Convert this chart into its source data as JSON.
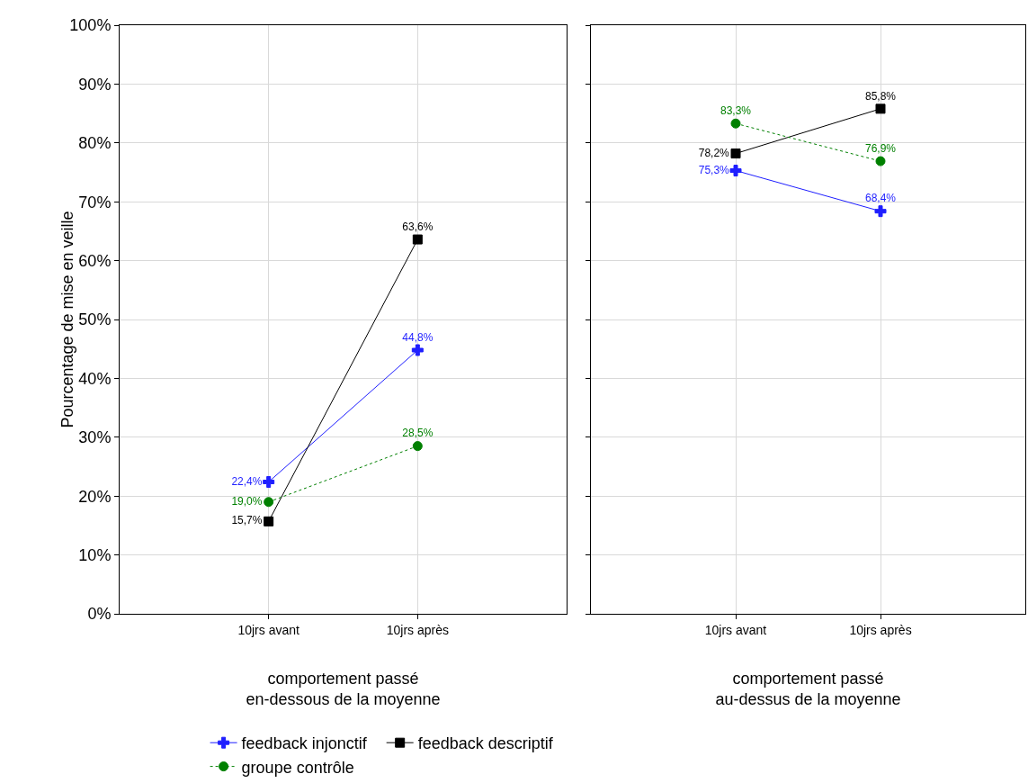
{
  "chart_data": [
    {
      "type": "line",
      "xlabel": "comportement passé\nen-dessous de la moyenne",
      "ylabel": "Pourcentage de mise en veille",
      "categories": [
        "10jrs avant",
        "10jrs après"
      ],
      "ylim": [
        0,
        100
      ],
      "yticks": [
        {
          "value": 0,
          "label": "0%"
        },
        {
          "value": 10,
          "label": "10%"
        },
        {
          "value": 20,
          "label": "20%"
        },
        {
          "value": 30,
          "label": "30%"
        },
        {
          "value": 40,
          "label": "40%"
        },
        {
          "value": 50,
          "label": "50%"
        },
        {
          "value": 60,
          "label": "60%"
        },
        {
          "value": 70,
          "label": "70%"
        },
        {
          "value": 80,
          "label": "80%"
        },
        {
          "value": 90,
          "label": "90%"
        },
        {
          "value": 100,
          "label": "100%"
        }
      ],
      "grid": true,
      "legend": "bottom",
      "series": [
        {
          "name": "feedback injonctif",
          "color": "#1f1fff",
          "marker": "cross",
          "line_style": "solid",
          "values": [
            22.4,
            44.8
          ],
          "value_labels": [
            "22,4%",
            "44,8%"
          ]
        },
        {
          "name": "feedback descriptif",
          "color": "#000000",
          "marker": "square",
          "line_style": "solid",
          "values": [
            15.7,
            63.6
          ],
          "value_labels": [
            "15,7%",
            "63,6%"
          ]
        },
        {
          "name": "groupe contrôle",
          "color": "#008000",
          "marker": "circle",
          "line_style": "dotted",
          "values": [
            19.0,
            28.5
          ],
          "value_labels": [
            "19,0%",
            "28,5%"
          ]
        }
      ]
    },
    {
      "type": "line",
      "xlabel": "comportement passé\nau-dessus de la moyenne",
      "categories": [
        "10jrs avant",
        "10jrs après"
      ],
      "ylim": [
        0,
        100
      ],
      "yticks": [
        0,
        10,
        20,
        30,
        40,
        50,
        60,
        70,
        80,
        90,
        100
      ],
      "grid": true,
      "tick_labels": "x",
      "series": [
        {
          "color": "#1f1fff",
          "marker": "cross",
          "line_style": "solid",
          "values": [
            75.3,
            68.4
          ],
          "value_labels": [
            "75,3%",
            "68,4%"
          ]
        },
        {
          "color": "#000000",
          "marker": "square",
          "line_style": "solid",
          "values": [
            78.2,
            85.8
          ],
          "value_labels": [
            "78,2%",
            "85,8%"
          ]
        },
        {
          "color": "#008000",
          "marker": "circle",
          "line_style": "dotted",
          "values": [
            83.3,
            76.9
          ],
          "value_labels": [
            "83,3%",
            "76,9%"
          ]
        }
      ]
    }
  ]
}
